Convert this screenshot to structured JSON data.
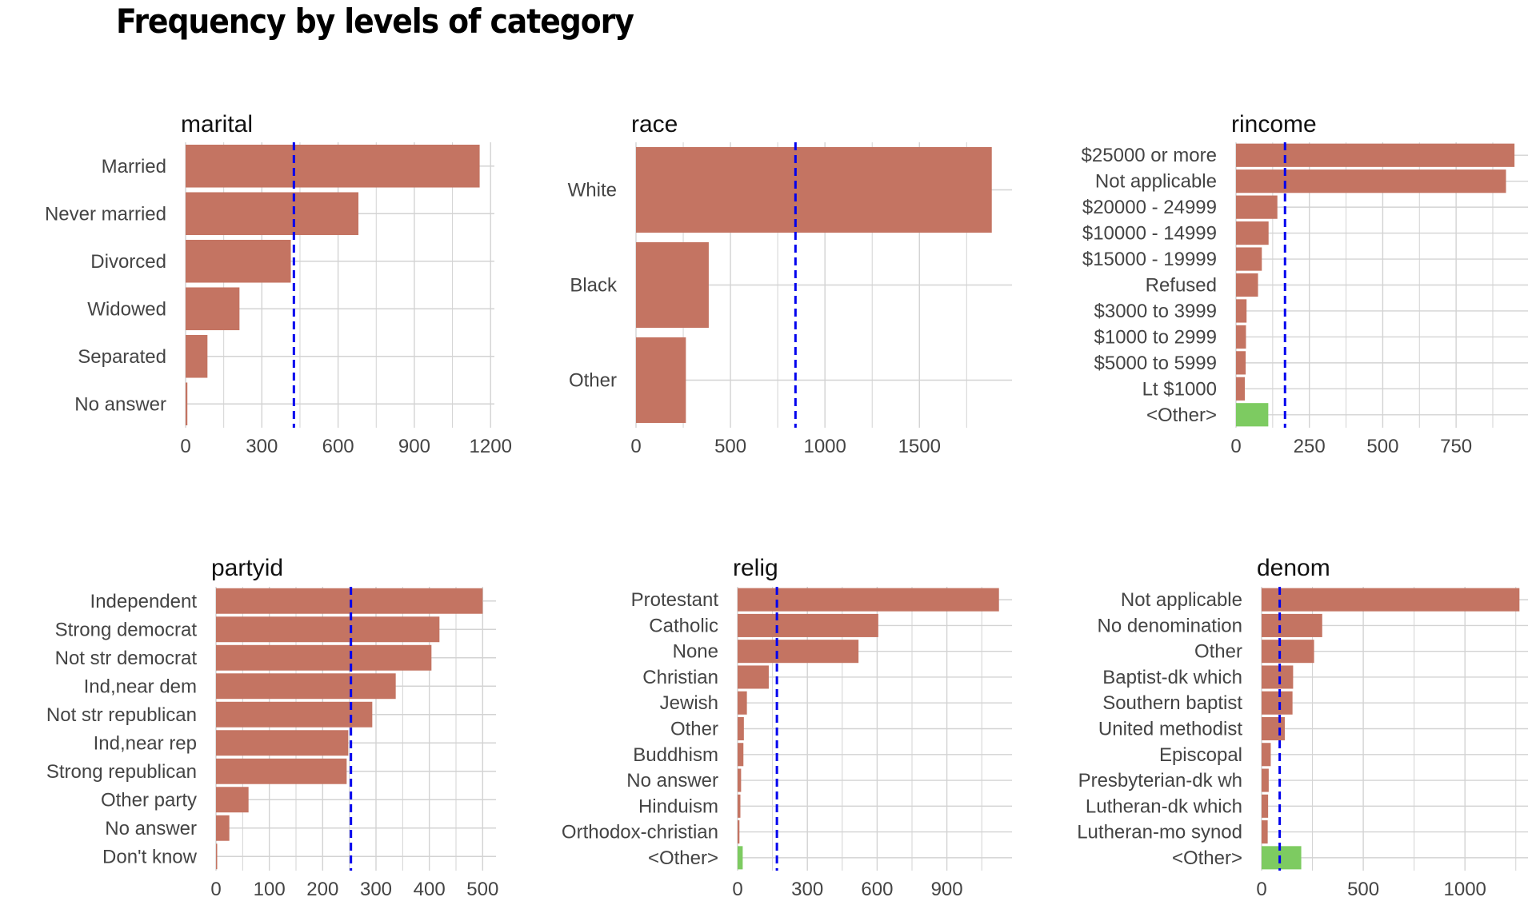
{
  "title": "Frequency by levels of category",
  "colors": {
    "bar": "#C47462",
    "other_bar": "#7DCB61",
    "mean_line": "#0000EE",
    "grid": "#D3D3D3",
    "text": "#444444"
  },
  "chart_data": [
    {
      "type": "bar",
      "title": "marital",
      "categories": [
        "Married",
        "Never married",
        "Divorced",
        "Widowed",
        "Separated",
        "No answer"
      ],
      "values": [
        1157,
        680,
        414,
        212,
        86,
        7
      ],
      "mean_line": 426,
      "xticks": [
        0,
        300,
        600,
        900,
        1200
      ],
      "xlim": [
        0,
        1215
      ],
      "grid": true
    },
    {
      "type": "bar",
      "title": "race",
      "categories": [
        "White",
        "Black",
        "Other"
      ],
      "values": [
        1883,
        385,
        264
      ],
      "mean_line": 844,
      "xticks": [
        0,
        500,
        1000,
        1500
      ],
      "xlim": [
        0,
        1990
      ],
      "grid": true
    },
    {
      "type": "bar",
      "title": "rincome",
      "categories": [
        "$25000 or more",
        "Not applicable",
        "$20000 - 24999",
        "$10000 - 14999",
        "$15000 - 19999",
        "Refused",
        "$3000 to 3999",
        "$1000 to 2999",
        "$5000 to 5999",
        "Lt $1000",
        "<Other>"
      ],
      "values": [
        949,
        920,
        141,
        111,
        88,
        75,
        36,
        34,
        33,
        30,
        110
      ],
      "other_category": "<Other>",
      "mean_line": 167,
      "xticks": [
        0,
        250,
        500,
        750
      ],
      "xlim": [
        0,
        995
      ],
      "grid": true
    },
    {
      "type": "bar",
      "title": "partyid",
      "categories": [
        "Independent",
        "Strong democrat",
        "Not str democrat",
        "Ind,near dem",
        "Not str republican",
        "Ind,near rep",
        "Strong republican",
        "Other party",
        "No answer",
        "Don't know"
      ],
      "values": [
        500,
        419,
        404,
        337,
        293,
        248,
        245,
        61,
        25,
        1
      ],
      "mean_line": 253,
      "xticks": [
        0,
        100,
        200,
        300,
        400,
        500
      ],
      "xlim": [
        0,
        525
      ],
      "grid": true
    },
    {
      "type": "bar",
      "title": "relig",
      "categories": [
        "Protestant",
        "Catholic",
        "None",
        "Christian",
        "Jewish",
        "Other",
        "Buddhism",
        "No answer",
        "Hinduism",
        "Orthodox-christian",
        "<Other>"
      ],
      "values": [
        1124,
        605,
        520,
        134,
        40,
        27,
        25,
        15,
        12,
        8,
        22
      ],
      "other_category": "<Other>",
      "mean_line": 169,
      "xticks": [
        0,
        300,
        600,
        900
      ],
      "xlim": [
        0,
        1180
      ],
      "grid": true
    },
    {
      "type": "bar",
      "title": "denom",
      "categories": [
        "Not applicable",
        "No denomination",
        "Other",
        "Baptist-dk which",
        "Southern baptist",
        "United methodist",
        "Episcopal",
        "Presbyterian-dk wh",
        "Lutheran-dk which",
        "Lutheran-mo synod",
        "<Other>"
      ],
      "values": [
        1268,
        298,
        258,
        155,
        152,
        114,
        45,
        35,
        32,
        30,
        195
      ],
      "other_category": "<Other>",
      "mean_line": 89,
      "xticks": [
        0,
        500,
        1000
      ],
      "xlim": [
        0,
        1310
      ],
      "grid": true
    }
  ]
}
